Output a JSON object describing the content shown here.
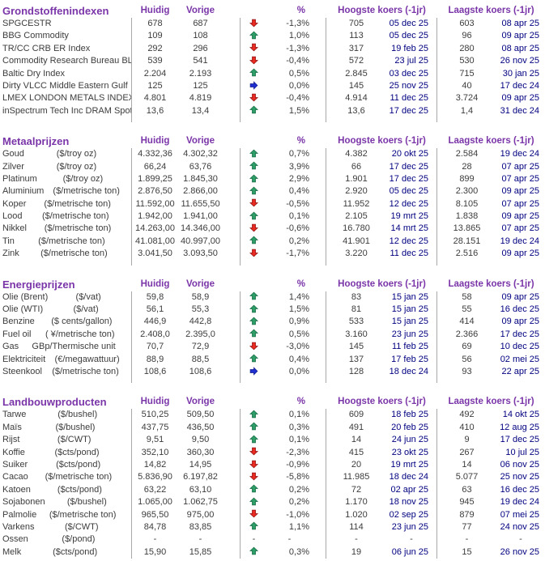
{
  "colors": {
    "accent": "#7A35A8",
    "text": "#3C3C3C",
    "date": "#000080",
    "divider": "#A8A8A8",
    "up_green": "#2E9E68",
    "up_green_border": "#156A42",
    "down_red": "#E82A20",
    "down_red_border": "#8F1010",
    "flat_blue": "#1F2FD0",
    "flat_blue_border": "#101A8C"
  },
  "columns": {
    "huidig": "Huidig",
    "vorige": "Vorige",
    "pct": "%",
    "hoogste": "Hoogste koers (-1jr)",
    "laagste": "Laagste koers (-1jr)"
  },
  "sections": [
    {
      "title": "Grondstoffenindexen",
      "slug": "grondstoffenindexen",
      "rows": [
        {
          "name": "SPGCESTR",
          "unit": "",
          "huidig": "678",
          "vorige": "687",
          "trend": "down",
          "pct": "-1,3%",
          "high": "705",
          "high_date": "05 dec 25",
          "low": "603",
          "low_date": "08 apr 25"
        },
        {
          "name": "BBG Commodity",
          "unit": "",
          "huidig": "109",
          "vorige": "108",
          "trend": "up",
          "pct": "1,0%",
          "high": "113",
          "high_date": "05 dec 25",
          "low": "96",
          "low_date": "09 apr 25"
        },
        {
          "name": "TR/CC CRB ER Index",
          "unit": "",
          "huidig": "292",
          "vorige": "296",
          "trend": "down",
          "pct": "-1,3%",
          "high": "317",
          "high_date": "19 feb 25",
          "low": "280",
          "low_date": "08 apr 25"
        },
        {
          "name": "Commodity Research Bureau BL",
          "unit": "",
          "huidig": "539",
          "vorige": "541",
          "trend": "down",
          "pct": "-0,4%",
          "high": "572",
          "high_date": "23 jul 25",
          "low": "530",
          "low_date": "26 nov 25"
        },
        {
          "name": "Baltic Dry Index",
          "unit": "",
          "huidig": "2.204",
          "vorige": "2.193",
          "trend": "up",
          "pct": "0,5%",
          "high": "2.845",
          "high_date": "03 dec 25",
          "low": "715",
          "low_date": "30 jan 25"
        },
        {
          "name": "Dirty VLCC Middle Eastern Gulf",
          "unit": "",
          "huidig": "125",
          "vorige": "125",
          "trend": "flat",
          "pct": "0,0%",
          "high": "145",
          "high_date": "25 nov 25",
          "low": "40",
          "low_date": "17 dec 24"
        },
        {
          "name": "LMEX LONDON METALS INDEX",
          "unit": "",
          "huidig": "4.801",
          "vorige": "4.819",
          "trend": "down",
          "pct": "-0,4%",
          "high": "4.914",
          "high_date": "11 dec 25",
          "low": "3.724",
          "low_date": "09 apr 25"
        },
        {
          "name": "inSpectrum Tech Inc DRAM Spot",
          "unit": "",
          "huidig": "13,6",
          "vorige": "13,4",
          "trend": "up",
          "pct": "1,5%",
          "high": "13,6",
          "high_date": "17 dec 25",
          "low": "1,4",
          "low_date": "31 dec 24"
        }
      ]
    },
    {
      "title": "Metaalprijzen",
      "slug": "metaalprijzen",
      "rows": [
        {
          "name": "Goud",
          "unit": "($/troy oz)",
          "huidig": "4.332,36",
          "vorige": "4.302,32",
          "trend": "up",
          "pct": "0,7%",
          "high": "4.382",
          "high_date": "20 okt 25",
          "low": "2.584",
          "low_date": "19 dec 24"
        },
        {
          "name": "Zilver",
          "unit": "($/troy oz)",
          "huidig": "66,24",
          "vorige": "63,76",
          "trend": "up",
          "pct": "3,9%",
          "high": "66",
          "high_date": "17 dec 25",
          "low": "28",
          "low_date": "07 apr 25"
        },
        {
          "name": "Platinum",
          "unit": "($/troy oz)",
          "huidig": "1.899,25",
          "vorige": "1.845,30",
          "trend": "up",
          "pct": "2,9%",
          "high": "1.901",
          "high_date": "17 dec 25",
          "low": "899",
          "low_date": "07 apr 25"
        },
        {
          "name": "Aluminium",
          "unit": "($/metrische ton)",
          "huidig": "2.876,50",
          "vorige": "2.866,00",
          "trend": "up",
          "pct": "0,4%",
          "high": "2.920",
          "high_date": "05 dec 25",
          "low": "2.300",
          "low_date": "09 apr 25"
        },
        {
          "name": "Koper",
          "unit": "($/metrische ton)",
          "huidig": "11.592,00",
          "vorige": "11.655,50",
          "trend": "down",
          "pct": "-0,5%",
          "high": "11.952",
          "high_date": "12 dec 25",
          "low": "8.105",
          "low_date": "07 apr 25"
        },
        {
          "name": "Lood",
          "unit": "($/metrische ton)",
          "huidig": "1.942,00",
          "vorige": "1.941,00",
          "trend": "up",
          "pct": "0,1%",
          "high": "2.105",
          "high_date": "19 mrt 25",
          "low": "1.838",
          "low_date": "09 apr 25"
        },
        {
          "name": "Nikkel",
          "unit": "($/metrische ton)",
          "huidig": "14.263,00",
          "vorige": "14.346,00",
          "trend": "down",
          "pct": "-0,6%",
          "high": "16.780",
          "high_date": "14 mrt 25",
          "low": "13.865",
          "low_date": "07 apr 25"
        },
        {
          "name": "Tin",
          "unit": "($/metrische ton)",
          "huidig": "41.081,00",
          "vorige": "40.997,00",
          "trend": "up",
          "pct": "0,2%",
          "high": "41.901",
          "high_date": "12 dec 25",
          "low": "28.151",
          "low_date": "19 dec 24"
        },
        {
          "name": "Zink",
          "unit": "($/metrische ton)",
          "huidig": "3.041,50",
          "vorige": "3.093,50",
          "trend": "down",
          "pct": "-1,7%",
          "high": "3.220",
          "high_date": "11 dec 25",
          "low": "2.516",
          "low_date": "09 apr 25"
        }
      ]
    },
    {
      "title": "Energieprijzen",
      "slug": "energieprijzen",
      "rows": [
        {
          "name": "Olie (Brent)",
          "unit": "($/vat)",
          "huidig": "59,8",
          "vorige": "58,9",
          "trend": "up",
          "pct": "1,4%",
          "high": "83",
          "high_date": "15 jan 25",
          "low": "58",
          "low_date": "09 apr 25"
        },
        {
          "name": "Olie (WTI)",
          "unit": "($/vat)",
          "huidig": "56,1",
          "vorige": "55,3",
          "trend": "up",
          "pct": "1,5%",
          "high": "81",
          "high_date": "15 jan 25",
          "low": "55",
          "low_date": "16 dec 25"
        },
        {
          "name": "Benzine",
          "unit": "($ cents/gallon)",
          "huidig": "446,9",
          "vorige": "442,8",
          "trend": "up",
          "pct": "0,9%",
          "high": "533",
          "high_date": "15 jan 25",
          "low": "414",
          "low_date": "09 apr 25"
        },
        {
          "name": "Fuel oil",
          "unit": "( ¥/metrische ton)",
          "huidig": "2.408,0",
          "vorige": "2.395,0",
          "trend": "up",
          "pct": "0,5%",
          "high": "3.160",
          "high_date": "23 jun 25",
          "low": "2.366",
          "low_date": "17 dec 25"
        },
        {
          "name": "Gas",
          "unit": "GBp/Thermische unit",
          "huidig": "70,7",
          "vorige": "72,9",
          "trend": "down",
          "pct": "-3,0%",
          "high": "145",
          "high_date": "11 feb 25",
          "low": "69",
          "low_date": "10 dec 25"
        },
        {
          "name": "Elektriciteit",
          "unit": "(€/megawattuur)",
          "huidig": "88,9",
          "vorige": "88,5",
          "trend": "up",
          "pct": "0,4%",
          "high": "137",
          "high_date": "17 feb 25",
          "low": "56",
          "low_date": "02 mei 25"
        },
        {
          "name": "Steenkool",
          "unit": "($/metrische ton)",
          "huidig": "108,6",
          "vorige": "108,6",
          "trend": "flat",
          "pct": "0,0%",
          "high": "128",
          "high_date": "18 dec 24",
          "low": "93",
          "low_date": "22 apr 25"
        }
      ]
    },
    {
      "title": "Landbouwproducten",
      "slug": "landbouwproducten",
      "rows": [
        {
          "name": "Tarwe",
          "unit": "($/bushel)",
          "huidig": "510,25",
          "vorige": "509,50",
          "trend": "up",
          "pct": "0,1%",
          "high": "609",
          "high_date": "18 feb 25",
          "low": "492",
          "low_date": "14 okt 25"
        },
        {
          "name": "Maïs",
          "unit": "($/bushel)",
          "huidig": "437,75",
          "vorige": "436,50",
          "trend": "up",
          "pct": "0,3%",
          "high": "491",
          "high_date": "20 feb 25",
          "low": "410",
          "low_date": "12 aug 25"
        },
        {
          "name": "Rijst",
          "unit": "($/CWT)",
          "huidig": "9,51",
          "vorige": "9,50",
          "trend": "up",
          "pct": "0,1%",
          "high": "14",
          "high_date": "24 jun 25",
          "low": "9",
          "low_date": "17 dec 25"
        },
        {
          "name": "Koffie",
          "unit": "($cts/pond)",
          "huidig": "352,10",
          "vorige": "360,30",
          "trend": "down",
          "pct": "-2,3%",
          "high": "415",
          "high_date": "23 okt 25",
          "low": "267",
          "low_date": "10 jul 25"
        },
        {
          "name": "Suiker",
          "unit": "($cts/pond)",
          "huidig": "14,82",
          "vorige": "14,95",
          "trend": "down",
          "pct": "-0,9%",
          "high": "20",
          "high_date": "19 mrt 25",
          "low": "14",
          "low_date": "06 nov 25"
        },
        {
          "name": "Cacao",
          "unit": "($/metrische ton)",
          "huidig": "5.836,90",
          "vorige": "6.197,82",
          "trend": "down",
          "pct": "-5,8%",
          "high": "11.985",
          "high_date": "18 dec 24",
          "low": "5.077",
          "low_date": "25 nov 25"
        },
        {
          "name": "Katoen",
          "unit": "($cts/pond)",
          "huidig": "63,22",
          "vorige": "63,10",
          "trend": "up",
          "pct": "0,2%",
          "high": "72",
          "high_date": "02 apr 25",
          "low": "63",
          "low_date": "16 dec 25"
        },
        {
          "name": "Sojabonen",
          "unit": "($/bushel)",
          "huidig": "1.065,00",
          "vorige": "1.062,75",
          "trend": "up",
          "pct": "0,2%",
          "high": "1.170",
          "high_date": "18 nov 25",
          "low": "945",
          "low_date": "19 dec 24"
        },
        {
          "name": "Palmolie",
          "unit": "($/metrische ton)",
          "huidig": "965,50",
          "vorige": "975,00",
          "trend": "down",
          "pct": "-1,0%",
          "high": "1.020",
          "high_date": "02 sep 25",
          "low": "879",
          "low_date": "07 mei 25"
        },
        {
          "name": "Varkens",
          "unit": "($/CWT)",
          "huidig": "84,78",
          "vorige": "83,85",
          "trend": "up",
          "pct": "1,1%",
          "high": "114",
          "high_date": "23 jun 25",
          "low": "77",
          "low_date": "24 nov 25"
        },
        {
          "name": "Ossen",
          "unit": "($/pond)",
          "huidig": "-",
          "vorige": "-",
          "trend": "none",
          "pct": "-",
          "high": "-",
          "high_date": "-",
          "low": "-",
          "low_date": "-"
        },
        {
          "name": "Melk",
          "unit": "($cts/pond)",
          "huidig": "15,90",
          "vorige": "15,85",
          "trend": "up",
          "pct": "0,3%",
          "high": "19",
          "high_date": "06 jun 25",
          "low": "15",
          "low_date": "26 nov 25"
        }
      ]
    }
  ]
}
